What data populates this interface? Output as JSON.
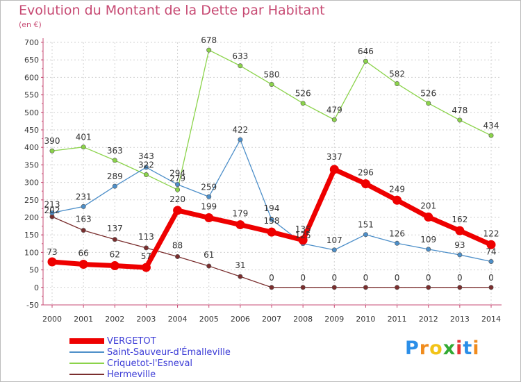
{
  "title": "Evolution du Montant de la Dette par Habitant",
  "subtitle": "(en €)",
  "logo": {
    "text": "Proxiti",
    "colors": [
      "#2b8ee8",
      "#f08c1e",
      "#f2c317",
      "#33aa33",
      "#e63333",
      "#2b8ee8",
      "#f08c1e"
    ]
  },
  "chart_data": {
    "type": "line",
    "x": [
      "2000",
      "2001",
      "2002",
      "2003",
      "2004",
      "2005",
      "2006",
      "2007",
      "2008",
      "2009",
      "2010",
      "2011",
      "2012",
      "2013",
      "2014"
    ],
    "ylim": [
      -50,
      700
    ],
    "yticks": [
      -50,
      0,
      50,
      100,
      150,
      200,
      250,
      300,
      350,
      400,
      450,
      500,
      550,
      600,
      650,
      700
    ],
    "grid": true,
    "legend": "bottom-left",
    "series": [
      {
        "name": "Hermeville",
        "color": "#7a2e2e",
        "values": [
          202,
          163,
          137,
          113,
          88,
          61,
          31,
          0,
          0,
          0,
          0,
          0,
          0,
          0,
          0
        ]
      },
      {
        "name": "Criquetot-l'Esneval",
        "color": "#8bd34a",
        "values": [
          390,
          401,
          363,
          322,
          279,
          678,
          633,
          580,
          526,
          479,
          646,
          582,
          526,
          478,
          434
        ]
      },
      {
        "name": "Saint-Sauveur-d'Émalleville",
        "color": "#4d8fc9",
        "values": [
          213,
          231,
          289,
          343,
          294,
          259,
          422,
          194,
          125,
          107,
          151,
          126,
          109,
          93,
          74
        ]
      },
      {
        "name": "VERGETOT",
        "color": "#ee0000",
        "values": [
          73,
          66,
          62,
          57,
          220,
          199,
          179,
          158,
          135,
          337,
          296,
          249,
          201,
          162,
          122
        ]
      }
    ],
    "legend_order": [
      "VERGETOT",
      "Saint-Sauveur-d'Émalleville",
      "Criquetot-l'Esneval",
      "Hermeville"
    ]
  }
}
